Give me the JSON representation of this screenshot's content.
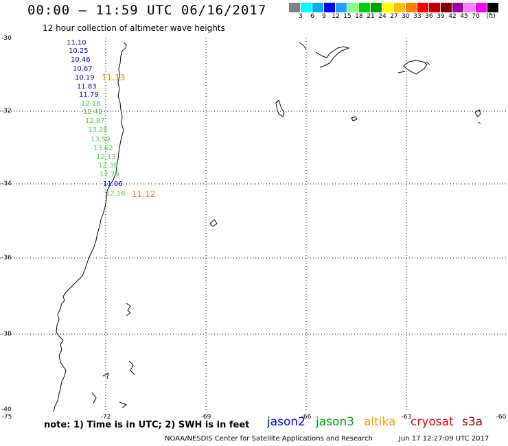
{
  "header": {
    "title": "00:00 – 11:59 UTC 06/16/2017",
    "subtitle": "12 hour collection of altimeter wave heights"
  },
  "scale": {
    "unit": "(ft)",
    "colors": [
      "#808080",
      "#00ffff",
      "#00b0f0",
      "#0000ff",
      "#20a0ff",
      "#80ff80",
      "#00d000",
      "#00a000",
      "#ffff00",
      "#ffc000",
      "#ff8000",
      "#ff0000",
      "#c00000",
      "#800000",
      "#a000a0",
      "#ff80ff",
      "#ff00ff",
      "#000000"
    ],
    "labels": [
      "3",
      "6",
      "9",
      "12",
      "15",
      "18",
      "21",
      "24",
      "27",
      "30",
      "33",
      "36",
      "39",
      "42",
      "45",
      "70"
    ]
  },
  "axes": {
    "lat_labels": [
      "-30",
      "-32",
      "-34",
      "-36",
      "-38",
      "-40"
    ],
    "lon_labels": [
      "-75",
      "-72",
      "-69",
      "-66",
      "-63",
      "-60"
    ]
  },
  "observations": {
    "jason2_color": "#0000cc",
    "jason3_color": "#33dd33",
    "altika_color": "#ee8800",
    "jason2": [
      "11.10",
      "10.25",
      "10.46",
      "10.67",
      "10.19",
      "11.83",
      "11.79"
    ],
    "jason3": [
      "12.18",
      "12.42",
      "12.87",
      "13.28",
      "13.59",
      "13.62",
      "12.13",
      "12.38",
      "12.79"
    ],
    "jason2_south": "11.06",
    "jason3_south": "12.16",
    "altika": [
      "11.13",
      "11.12"
    ]
  },
  "footer": {
    "note": "note:  1) Time is in UTC;  2) SWH is in feet",
    "satellites": [
      {
        "name": "jason2",
        "color": "#0000ee"
      },
      {
        "name": "jason3",
        "color": "#00aa00"
      },
      {
        "name": "altika",
        "color": "#ff9900"
      },
      {
        "name": "cryosat",
        "color": "#ee0000"
      },
      {
        "name": "s3a",
        "color": "#aa0000"
      }
    ],
    "credit": "NOAA/NESDIS Center for Satellite Applications and Research",
    "timestamp": "Jun 17 12:27:09 UTC 2017"
  }
}
